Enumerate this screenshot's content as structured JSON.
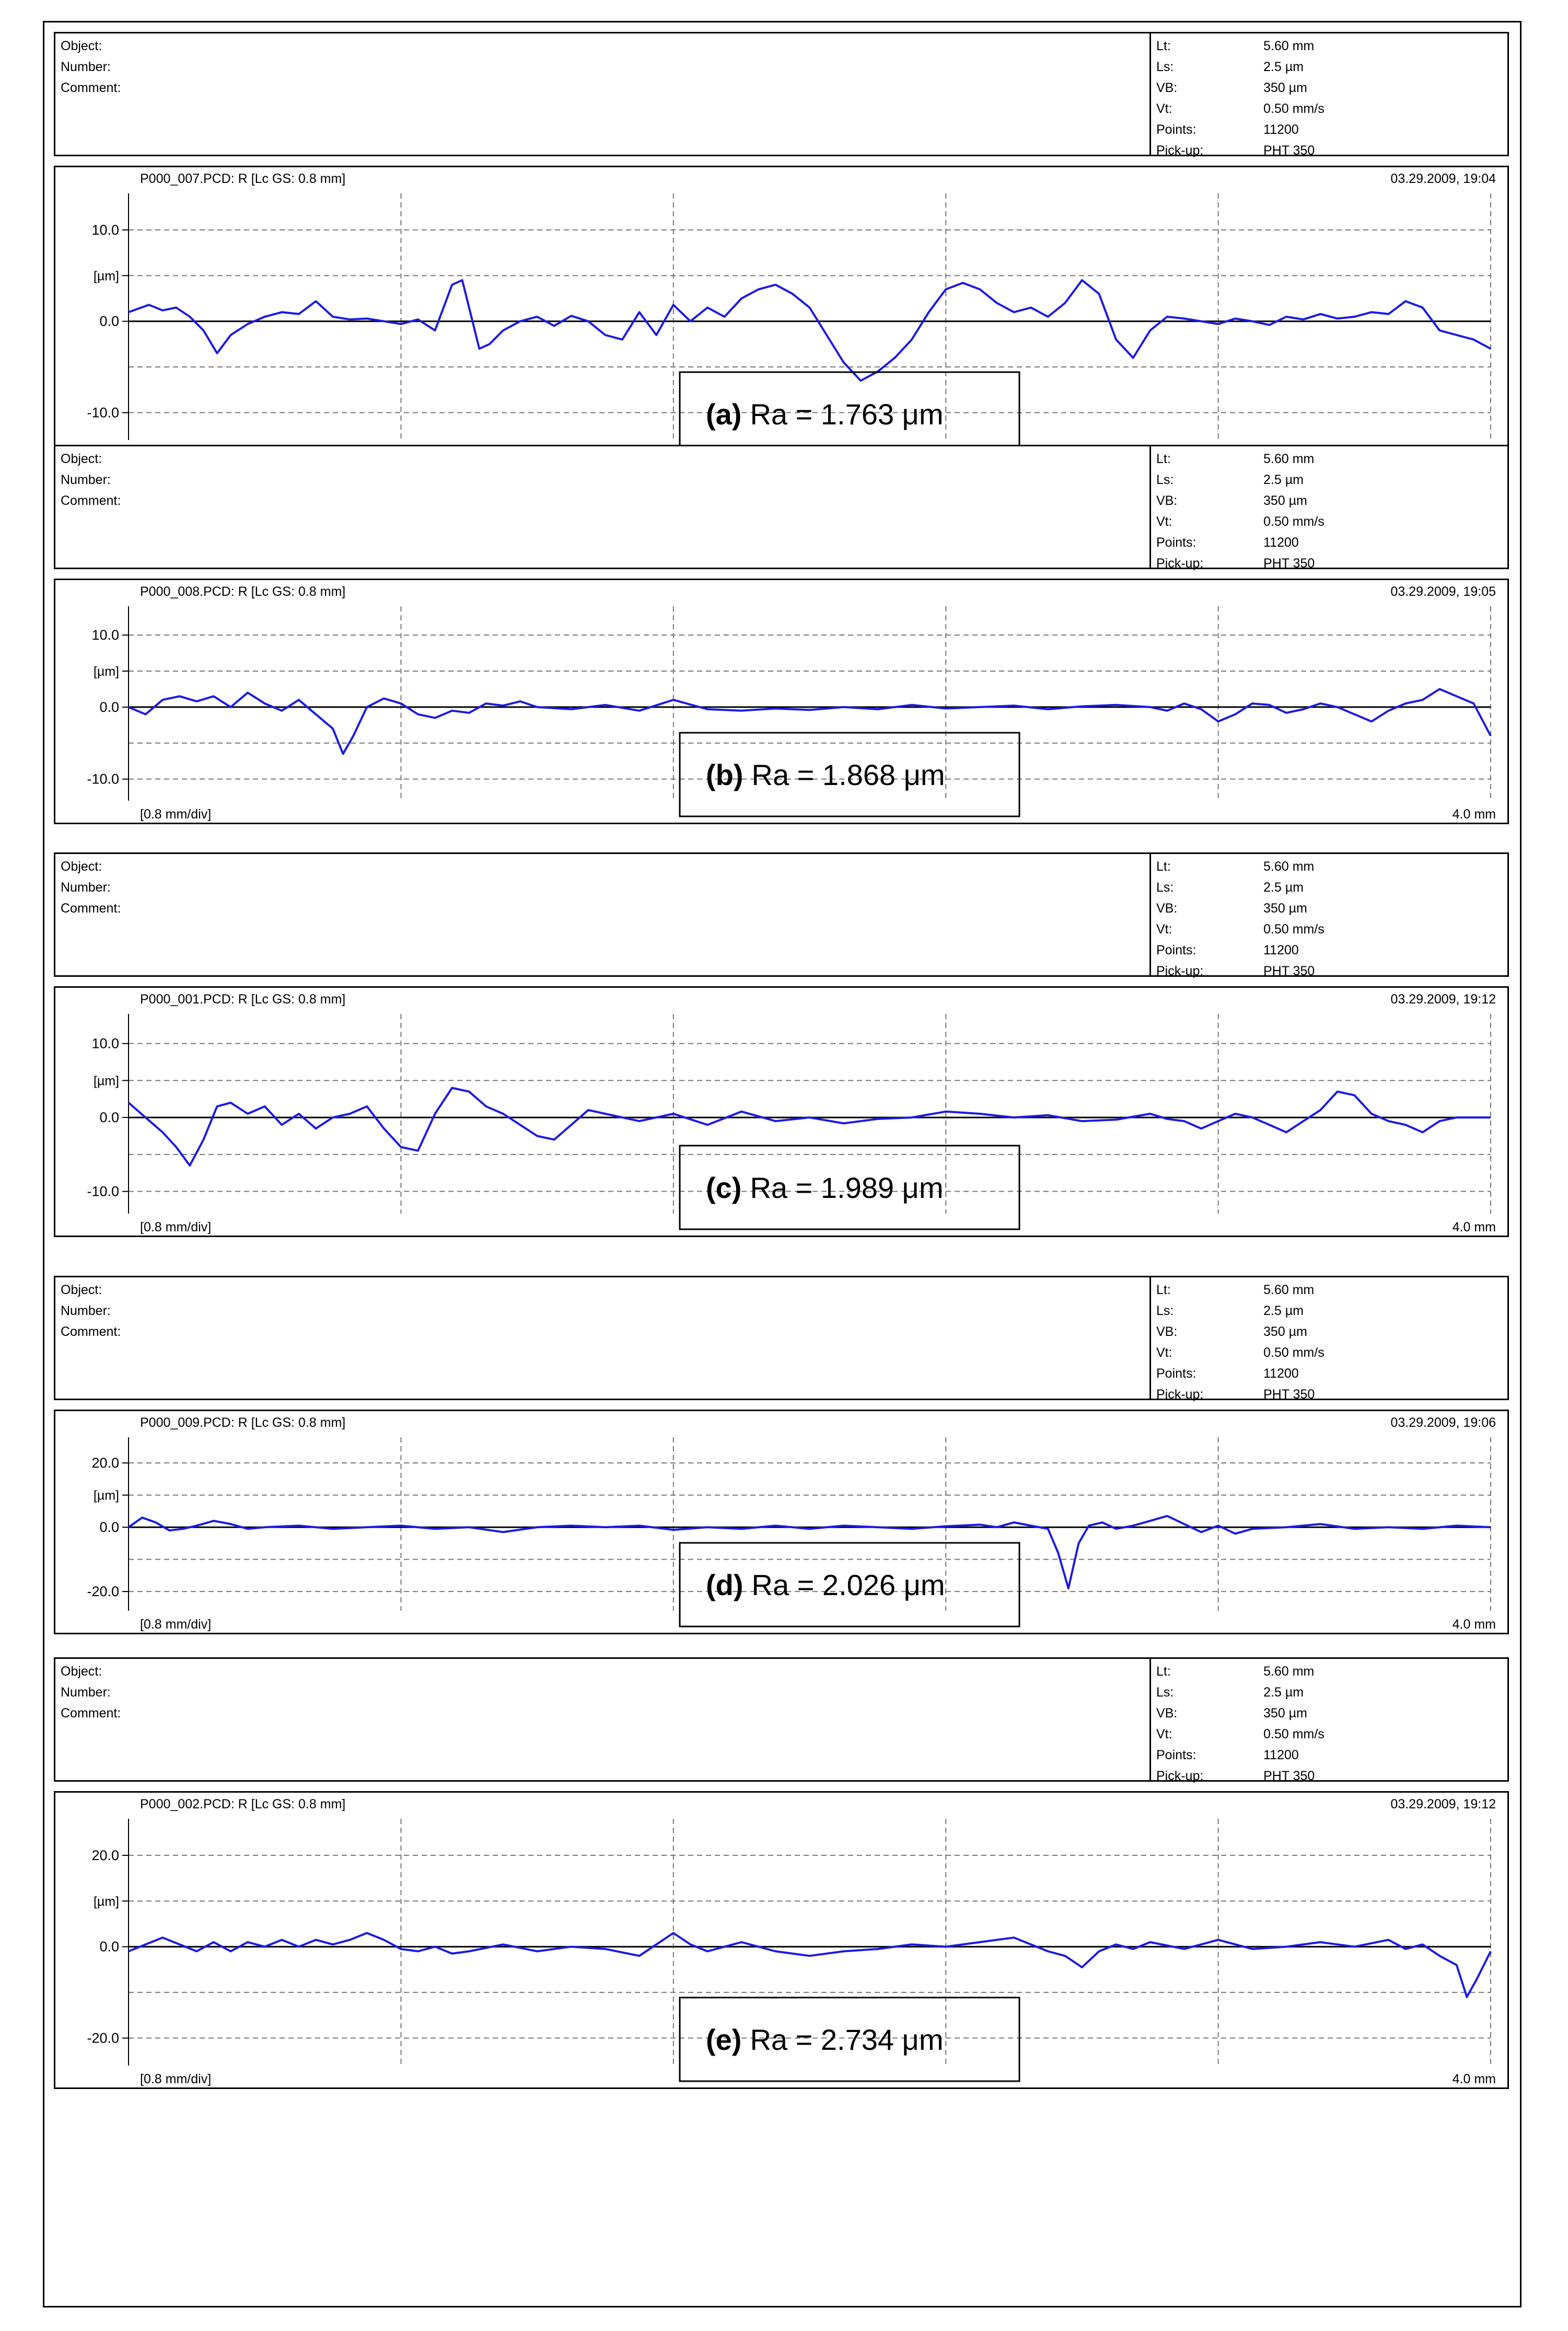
{
  "units_label": "[µm]",
  "div_label": "[0.8 mm/div]",
  "end_label": "4.0 mm",
  "meta_labels": [
    "Object:",
    "Number:",
    "Comment:"
  ],
  "param_names": [
    "Lt:",
    "Ls:",
    "VB:",
    "Vt:",
    "Points:",
    "Pick-up:"
  ],
  "chart_data": [
    {
      "type": "line",
      "title": "P000_007.PCD: R [Lc GS: 0.8 mm]",
      "timestamp": "03.29.2009, 19:04",
      "params": [
        "5.60 mm",
        "2.5 µm",
        "350 µm",
        "0.50 mm/s",
        "11200",
        "PHT 350"
      ],
      "yticks": [
        "10.0",
        "0.0",
        "-10.0"
      ],
      "ylim": [
        -13,
        14
      ],
      "xlim": [
        0,
        4.0
      ],
      "caption_label": "(a)",
      "caption_value": "Ra = 1.763 μm",
      "x": [
        0,
        0.06,
        0.1,
        0.14,
        0.18,
        0.22,
        0.26,
        0.3,
        0.35,
        0.4,
        0.45,
        0.5,
        0.55,
        0.6,
        0.65,
        0.7,
        0.75,
        0.8,
        0.85,
        0.9,
        0.95,
        0.98,
        1.0,
        1.03,
        1.06,
        1.1,
        1.15,
        1.2,
        1.25,
        1.3,
        1.35,
        1.4,
        1.45,
        1.5,
        1.55,
        1.6,
        1.65,
        1.7,
        1.75,
        1.8,
        1.85,
        1.9,
        1.95,
        2.0,
        2.05,
        2.1,
        2.15,
        2.2,
        2.25,
        2.3,
        2.35,
        2.4,
        2.45,
        2.5,
        2.55,
        2.6,
        2.65,
        2.7,
        2.75,
        2.8,
        2.85,
        2.9,
        2.95,
        3.0,
        3.05,
        3.1,
        3.15,
        3.2,
        3.25,
        3.3,
        3.35,
        3.4,
        3.45,
        3.5,
        3.55,
        3.6,
        3.65,
        3.7,
        3.75,
        3.8,
        3.85,
        3.9,
        3.95,
        4.0
      ],
      "y": [
        1.0,
        1.8,
        1.2,
        1.5,
        0.5,
        -1.0,
        -3.5,
        -1.5,
        -0.3,
        0.5,
        1.0,
        0.8,
        2.2,
        0.5,
        0.2,
        0.3,
        0.0,
        -0.3,
        0.2,
        -1.0,
        4.0,
        4.5,
        1.5,
        -3.0,
        -2.5,
        -1.0,
        0.0,
        0.5,
        -0.5,
        0.6,
        0.0,
        -1.5,
        -2.0,
        1.0,
        -1.5,
        1.8,
        0.0,
        1.5,
        0.5,
        2.5,
        3.5,
        4.0,
        3.0,
        1.5,
        -1.5,
        -4.5,
        -6.5,
        -5.5,
        -4.0,
        -2.0,
        1.0,
        3.5,
        4.2,
        3.5,
        2.0,
        1.0,
        1.5,
        0.5,
        2.0,
        4.5,
        3.0,
        -2.0,
        -4.0,
        -1.0,
        0.5,
        0.3,
        0.0,
        -0.3,
        0.3,
        0.0,
        -0.4,
        0.5,
        0.2,
        0.8,
        0.3,
        0.5,
        1.0,
        0.8,
        2.2,
        1.5,
        -1.0,
        -1.5,
        -2.0,
        -3.0
      ]
    },
    {
      "type": "line",
      "title": "P000_008.PCD: R [Lc GS: 0.8 mm]",
      "timestamp": "03.29.2009, 19:05",
      "params": [
        "5.60 mm",
        "2.5 µm",
        "350 µm",
        "0.50 mm/s",
        "11200",
        "PHT 350"
      ],
      "yticks": [
        "10.0",
        "0.0",
        "-10.0"
      ],
      "ylim": [
        -13,
        14
      ],
      "xlim": [
        0,
        4.0
      ],
      "caption_label": "(b)",
      "caption_value": "Ra = 1.868 μm",
      "x": [
        0,
        0.05,
        0.1,
        0.15,
        0.2,
        0.25,
        0.3,
        0.35,
        0.4,
        0.45,
        0.5,
        0.55,
        0.6,
        0.63,
        0.66,
        0.7,
        0.75,
        0.8,
        0.85,
        0.9,
        0.95,
        1.0,
        1.05,
        1.1,
        1.15,
        1.2,
        1.3,
        1.4,
        1.5,
        1.6,
        1.7,
        1.8,
        1.9,
        2.0,
        2.1,
        2.2,
        2.3,
        2.4,
        2.5,
        2.6,
        2.7,
        2.8,
        2.9,
        3.0,
        3.05,
        3.1,
        3.15,
        3.2,
        3.25,
        3.3,
        3.35,
        3.4,
        3.45,
        3.5,
        3.55,
        3.6,
        3.65,
        3.7,
        3.75,
        3.8,
        3.85,
        3.9,
        3.95,
        4.0
      ],
      "y": [
        0.0,
        -1.0,
        1.0,
        1.5,
        0.8,
        1.5,
        0.0,
        2.0,
        0.5,
        -0.5,
        1.0,
        -1.0,
        -3.0,
        -6.5,
        -4.0,
        0.0,
        1.2,
        0.5,
        -1.0,
        -1.5,
        -0.5,
        -0.8,
        0.5,
        0.2,
        0.8,
        0.0,
        -0.3,
        0.3,
        -0.5,
        1.0,
        -0.3,
        -0.5,
        -0.2,
        -0.4,
        0.0,
        -0.3,
        0.3,
        -0.2,
        0.0,
        0.2,
        -0.3,
        0.1,
        0.3,
        0.0,
        -0.5,
        0.5,
        -0.3,
        -2.0,
        -1.0,
        0.5,
        0.3,
        -0.8,
        -0.3,
        0.5,
        0.0,
        -1.0,
        -2.0,
        -0.5,
        0.5,
        1.0,
        2.5,
        1.5,
        0.5,
        -4.0
      ]
    },
    {
      "type": "line",
      "title": "P000_001.PCD: R [Lc GS: 0.8 mm]",
      "timestamp": "03.29.2009, 19:12",
      "params": [
        "5.60 mm",
        "2.5 µm",
        "350 µm",
        "0.50 mm/s",
        "11200",
        "PHT 350"
      ],
      "yticks": [
        "10.0",
        "0.0",
        "-10.0"
      ],
      "ylim": [
        -13,
        14
      ],
      "xlim": [
        0,
        4.0
      ],
      "caption_label": "(c)",
      "caption_value": "Ra = 1.989 μm",
      "x": [
        0,
        0.05,
        0.1,
        0.14,
        0.18,
        0.22,
        0.26,
        0.3,
        0.35,
        0.4,
        0.45,
        0.5,
        0.55,
        0.6,
        0.65,
        0.7,
        0.75,
        0.8,
        0.85,
        0.9,
        0.95,
        1.0,
        1.05,
        1.1,
        1.15,
        1.2,
        1.25,
        1.3,
        1.35,
        1.4,
        1.45,
        1.5,
        1.55,
        1.6,
        1.7,
        1.8,
        1.9,
        2.0,
        2.1,
        2.2,
        2.3,
        2.4,
        2.5,
        2.6,
        2.7,
        2.8,
        2.9,
        3.0,
        3.05,
        3.1,
        3.15,
        3.2,
        3.25,
        3.3,
        3.35,
        3.4,
        3.45,
        3.5,
        3.55,
        3.6,
        3.65,
        3.7,
        3.75,
        3.8,
        3.85,
        3.9,
        4.0
      ],
      "y": [
        2.0,
        0.0,
        -2.0,
        -4.0,
        -6.5,
        -3.0,
        1.5,
        2.0,
        0.5,
        1.5,
        -1.0,
        0.5,
        -1.5,
        0.0,
        0.5,
        1.5,
        -1.5,
        -4.0,
        -4.5,
        0.5,
        4.0,
        3.5,
        1.5,
        0.5,
        -1.0,
        -2.5,
        -3.0,
        -1.0,
        1.0,
        0.5,
        0.0,
        -0.5,
        0.0,
        0.5,
        -1.0,
        0.8,
        -0.5,
        0.0,
        -0.8,
        -0.2,
        0.0,
        0.8,
        0.5,
        0.0,
        0.3,
        -0.5,
        -0.3,
        0.5,
        -0.2,
        -0.5,
        -1.5,
        -0.5,
        0.5,
        0.0,
        -1.0,
        -2.0,
        -0.5,
        1.0,
        3.5,
        3.0,
        0.5,
        -0.5,
        -1.0,
        -2.0,
        -0.5,
        0.0,
        0.0
      ]
    },
    {
      "type": "line",
      "title": "P000_009.PCD: R [Lc GS: 0.8 mm]",
      "timestamp": "03.29.2009, 19:06",
      "params": [
        "5.60 mm",
        "2.5 µm",
        "350 µm",
        "0.50 mm/s",
        "11200",
        "PHT 350"
      ],
      "yticks": [
        "20.0",
        "0.0",
        "-20.0"
      ],
      "ylim": [
        -26,
        28
      ],
      "xlim": [
        0,
        4.0
      ],
      "caption_label": "(d)",
      "caption_value": "Ra = 2.026 μm",
      "x": [
        0,
        0.04,
        0.08,
        0.12,
        0.16,
        0.2,
        0.25,
        0.3,
        0.35,
        0.4,
        0.5,
        0.6,
        0.7,
        0.8,
        0.9,
        1.0,
        1.1,
        1.2,
        1.3,
        1.4,
        1.5,
        1.6,
        1.7,
        1.8,
        1.9,
        2.0,
        2.1,
        2.2,
        2.3,
        2.4,
        2.5,
        2.55,
        2.6,
        2.65,
        2.7,
        2.73,
        2.76,
        2.79,
        2.82,
        2.86,
        2.9,
        2.95,
        3.0,
        3.05,
        3.1,
        3.15,
        3.2,
        3.25,
        3.3,
        3.4,
        3.5,
        3.6,
        3.7,
        3.8,
        3.9,
        4.0
      ],
      "y": [
        0.0,
        3.0,
        1.5,
        -1.0,
        -0.5,
        0.5,
        2.0,
        1.0,
        -0.5,
        0.0,
        0.5,
        -0.5,
        0.0,
        0.5,
        -0.5,
        0.0,
        -1.5,
        0.0,
        0.5,
        0.0,
        0.5,
        -0.8,
        0.0,
        -0.5,
        0.5,
        -0.5,
        0.5,
        0.0,
        -0.5,
        0.3,
        0.8,
        0.0,
        1.5,
        0.5,
        -0.5,
        -8.0,
        -19.0,
        -5.0,
        0.5,
        1.5,
        -0.5,
        0.5,
        2.0,
        3.5,
        1.0,
        -1.5,
        0.5,
        -2.0,
        -0.5,
        0.0,
        1.0,
        -0.5,
        0.0,
        -0.5,
        0.5,
        0.0
      ]
    },
    {
      "type": "line",
      "title": "P000_002.PCD: R [Lc GS: 0.8 mm]",
      "timestamp": "03.29.2009, 19:12",
      "params": [
        "5.60 mm",
        "2.5 µm",
        "350 µm",
        "0.50 mm/s",
        "11200",
        "PHT 350"
      ],
      "yticks": [
        "20.0",
        "0.0",
        "-20.0"
      ],
      "ylim": [
        -26,
        28
      ],
      "xlim": [
        0,
        4.0
      ],
      "caption_label": "(e)",
      "caption_value": "Ra = 2.734 μm",
      "x": [
        0,
        0.05,
        0.1,
        0.15,
        0.2,
        0.25,
        0.3,
        0.35,
        0.4,
        0.45,
        0.5,
        0.55,
        0.6,
        0.65,
        0.7,
        0.75,
        0.8,
        0.85,
        0.9,
        0.95,
        1.0,
        1.1,
        1.2,
        1.3,
        1.4,
        1.5,
        1.55,
        1.6,
        1.65,
        1.7,
        1.8,
        1.9,
        2.0,
        2.1,
        2.2,
        2.3,
        2.4,
        2.5,
        2.6,
        2.65,
        2.7,
        2.75,
        2.8,
        2.85,
        2.9,
        2.95,
        3.0,
        3.1,
        3.2,
        3.3,
        3.4,
        3.5,
        3.6,
        3.7,
        3.75,
        3.8,
        3.85,
        3.9,
        3.93,
        3.96,
        4.0
      ],
      "y": [
        -1.0,
        0.5,
        2.0,
        0.5,
        -1.0,
        1.0,
        -1.0,
        1.0,
        0.0,
        1.5,
        0.0,
        1.5,
        0.5,
        1.5,
        3.0,
        1.5,
        -0.5,
        -1.0,
        0.0,
        -1.5,
        -1.0,
        0.5,
        -1.0,
        0.0,
        -0.5,
        -2.0,
        0.5,
        3.0,
        0.5,
        -1.0,
        1.0,
        -1.0,
        -2.0,
        -1.0,
        -0.5,
        0.5,
        0.0,
        1.0,
        2.0,
        0.5,
        -1.0,
        -2.0,
        -4.5,
        -1.0,
        0.5,
        -0.5,
        1.0,
        -0.5,
        1.5,
        -0.5,
        0.0,
        1.0,
        0.0,
        1.5,
        -0.5,
        0.5,
        -2.0,
        -4.0,
        -11.0,
        -7.0,
        -1.0
      ]
    }
  ]
}
